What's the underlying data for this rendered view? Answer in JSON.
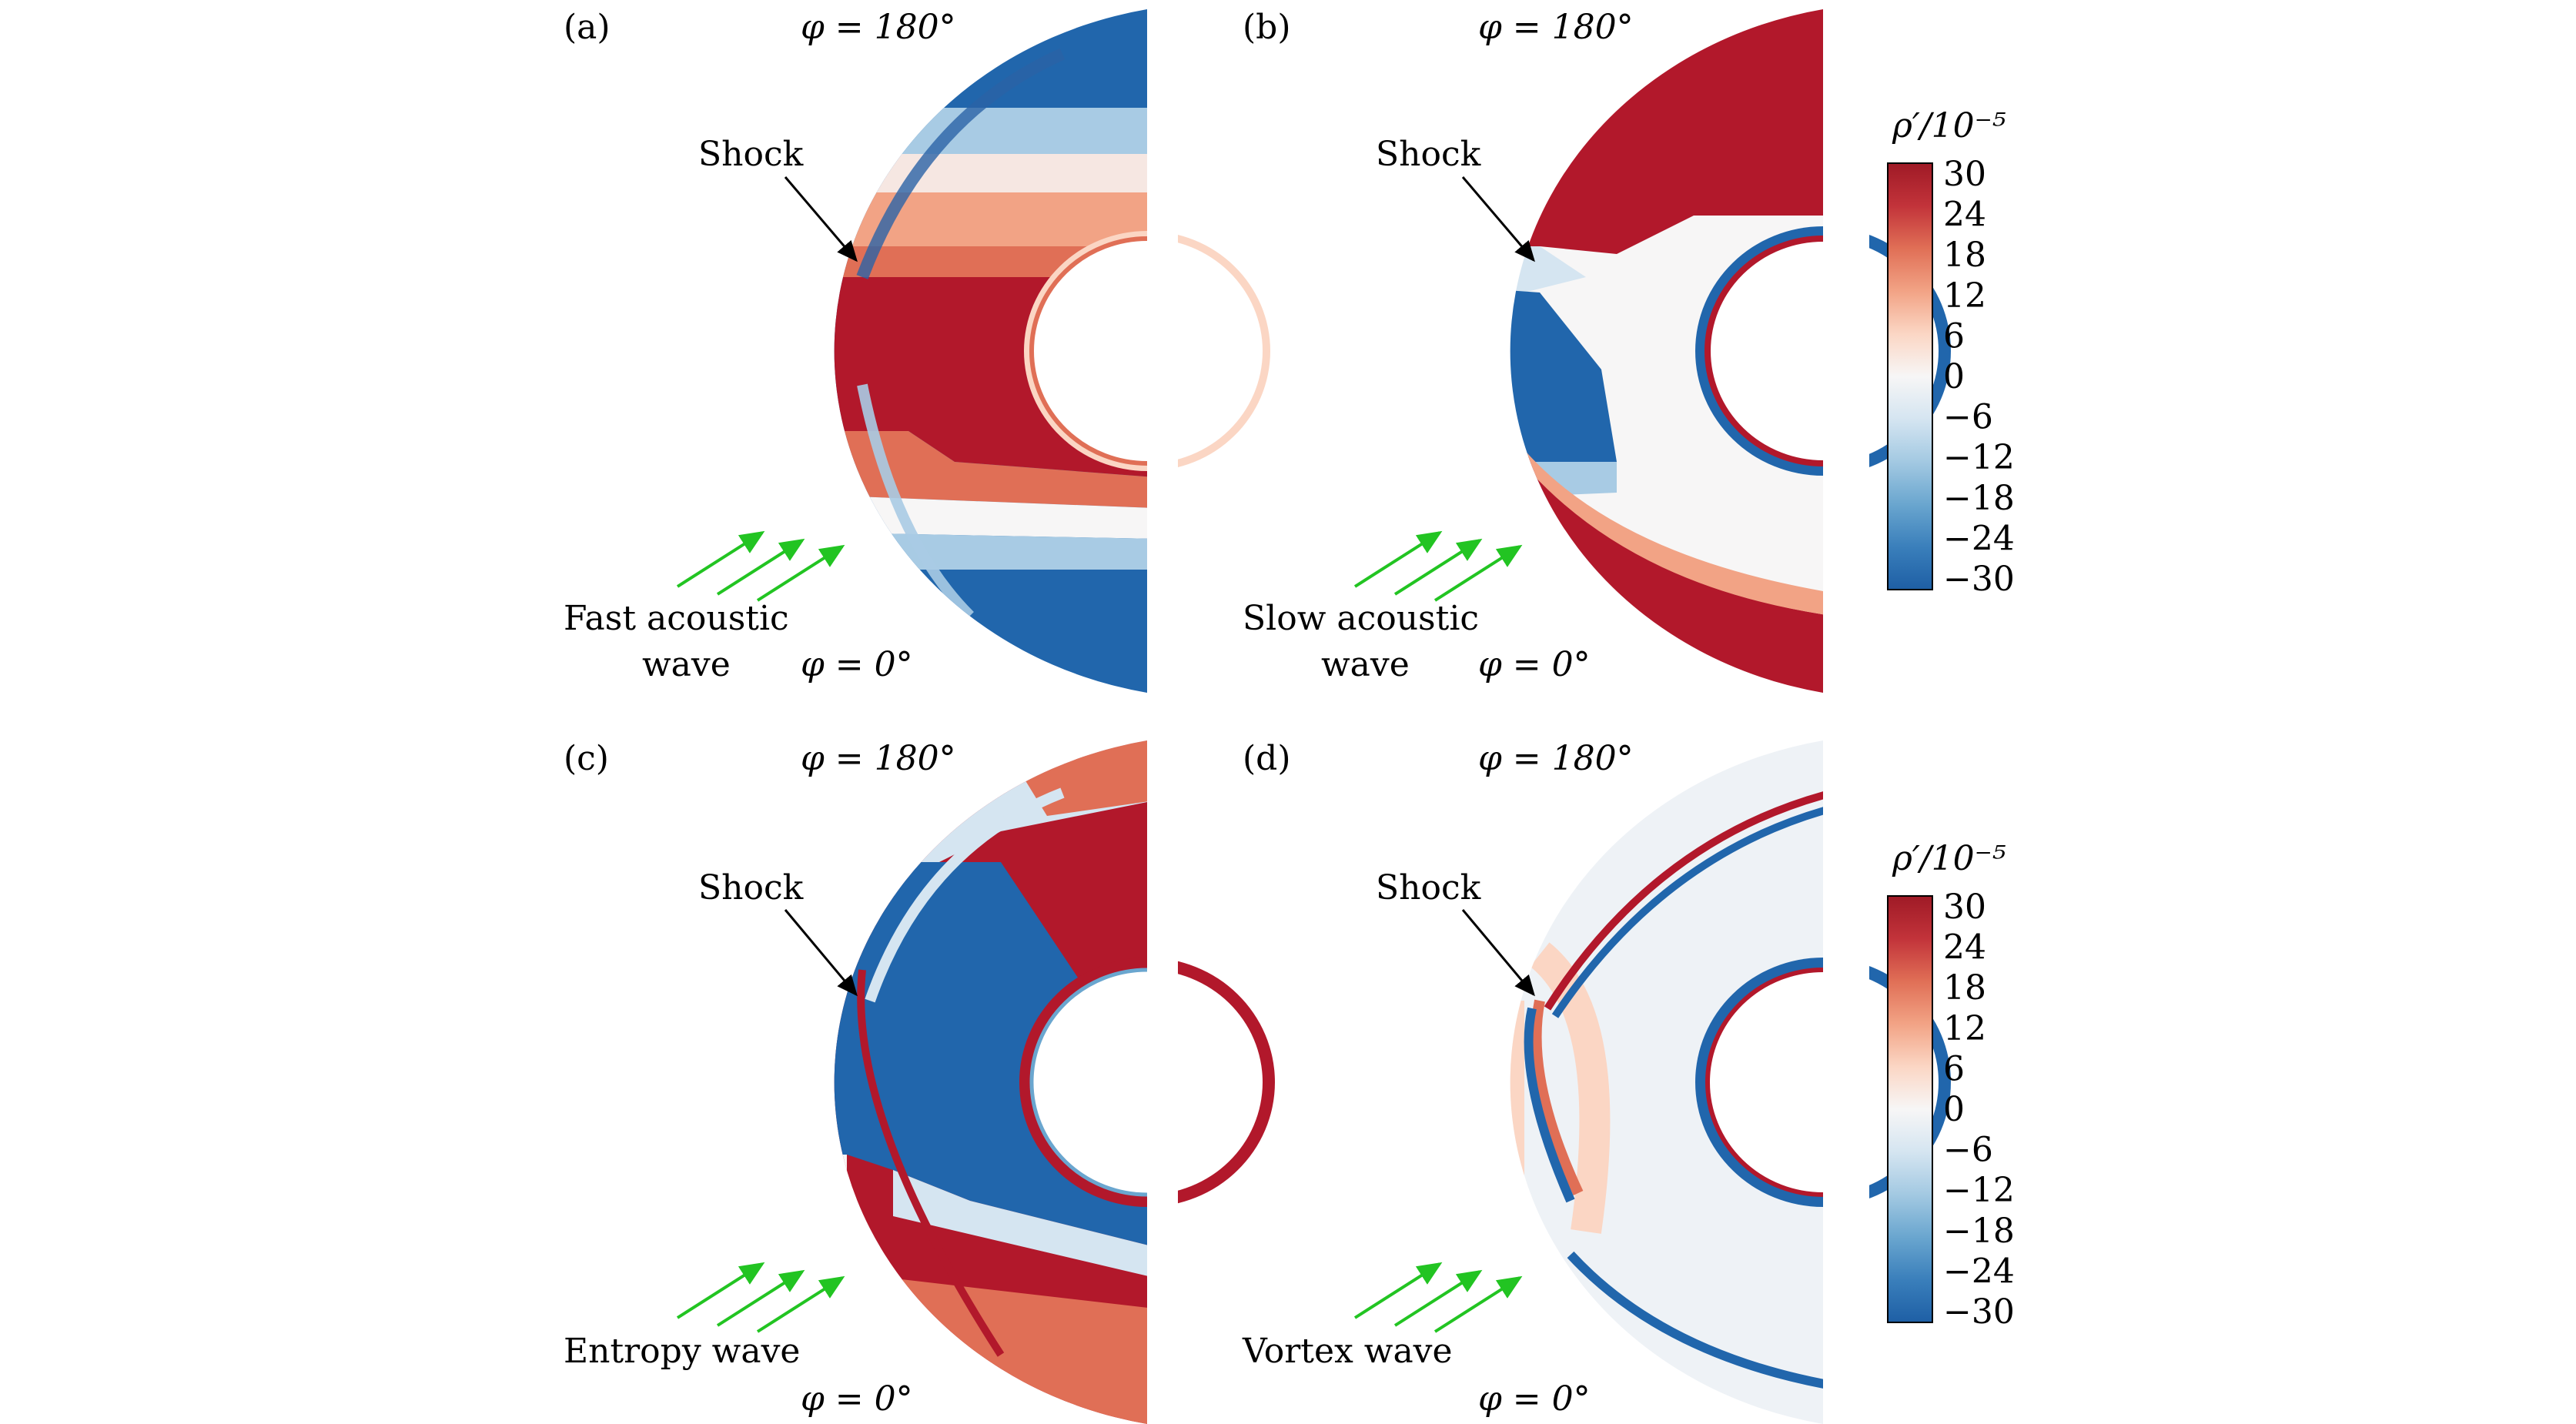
{
  "figure": {
    "panels": [
      {
        "id": "a",
        "label": "(a)",
        "phi_top": "φ = 180°",
        "phi_bottom": "φ = 0°",
        "shock_label": "Shock",
        "wave_label_line1": "Fast acoustic",
        "wave_label_line2": "wave"
      },
      {
        "id": "b",
        "label": "(b)",
        "phi_top": "φ = 180°",
        "phi_bottom": "φ = 0°",
        "shock_label": "Shock",
        "wave_label_line1": "Slow acoustic",
        "wave_label_line2": "wave"
      },
      {
        "id": "c",
        "label": "(c)",
        "phi_top": "φ = 180°",
        "phi_bottom": "φ = 0°",
        "shock_label": "Shock",
        "wave_label_line1": "Entropy wave",
        "wave_label_line2": ""
      },
      {
        "id": "d",
        "label": "(d)",
        "phi_top": "φ = 180°",
        "phi_bottom": "φ = 0°",
        "shock_label": "Shock",
        "wave_label_line1": "Vortex wave",
        "wave_label_line2": ""
      }
    ],
    "colorbars": [
      {
        "title": "ρ′/10⁻⁵",
        "ticks": [
          "30",
          "24",
          "18",
          "12",
          "6",
          "0",
          "−6",
          "−12",
          "−18",
          "−24",
          "−30"
        ]
      },
      {
        "title": "ρ′/10⁻⁵",
        "ticks": [
          "30",
          "24",
          "18",
          "12",
          "6",
          "0",
          "−6",
          "−12",
          "−18",
          "−24",
          "−30"
        ]
      }
    ]
  },
  "colors": {
    "red": "#b2182b",
    "blue": "#2166ac",
    "arrow": "#22c422",
    "text": "#000000"
  },
  "chart_data": {
    "type": "heatmap",
    "title": "",
    "quantity": "ρ′/10⁻⁵",
    "colorbar_range": [
      -30,
      30
    ],
    "colorbar_ticks": [
      30,
      24,
      18,
      12,
      6,
      0,
      -6,
      -12,
      -18,
      -24,
      -30
    ],
    "panels": [
      "(a) Fast acoustic wave",
      "(b) Slow acoustic wave",
      "(c) Entropy wave",
      "(d) Vortex wave"
    ]
  }
}
